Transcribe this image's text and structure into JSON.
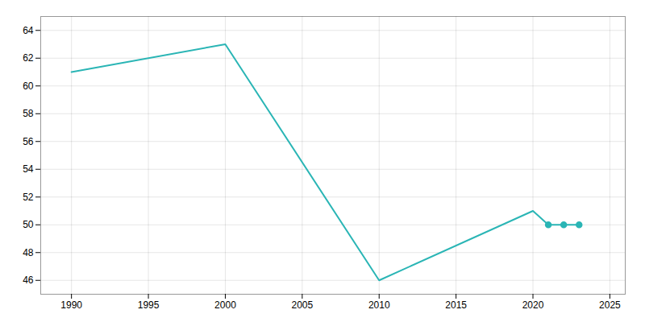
{
  "chart_data": {
    "type": "line",
    "x": [
      1990,
      2000,
      2010,
      2020,
      2021,
      2022,
      2023
    ],
    "series": [
      {
        "type": "line",
        "color": "#2ab5b5",
        "values": [
          61,
          63,
          46,
          51,
          50,
          50,
          50
        ]
      },
      {
        "type": "scatter",
        "color": "#2ab5b5",
        "marker": "circle",
        "values": [
          null,
          null,
          null,
          null,
          50,
          50,
          50
        ]
      }
    ],
    "xlim": [
      1988,
      2026
    ],
    "xticks": [
      1990,
      1995,
      2000,
      2005,
      2010,
      2015,
      2020,
      2025
    ],
    "ylim": [
      45,
      65
    ],
    "yticks": [
      46,
      48,
      50,
      52,
      54,
      56,
      58,
      60,
      62,
      64
    ],
    "grid": true
  }
}
